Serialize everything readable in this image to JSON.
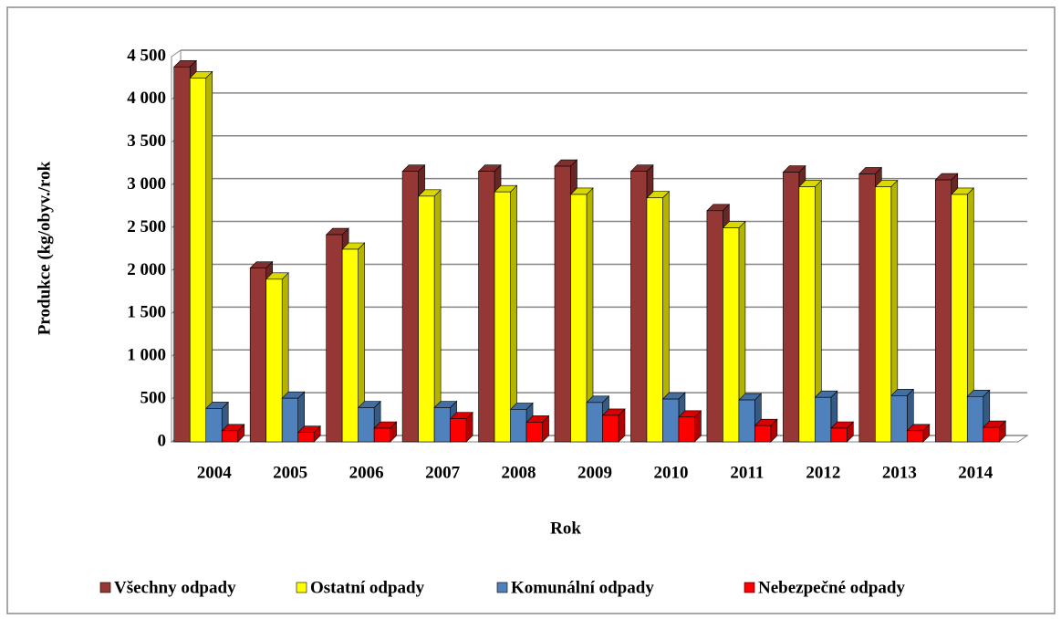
{
  "chart_data": {
    "type": "bar3d",
    "x_label": "Rok",
    "y_label": "Produkce (kg/obyv./rok",
    "categories": [
      "2004",
      "2005",
      "2006",
      "2007",
      "2008",
      "2009",
      "2010",
      "2011",
      "2012",
      "2013",
      "2014"
    ],
    "series": [
      {
        "name": "Všechny odpady",
        "color": "#953735",
        "values": [
          4380,
          2030,
          2420,
          3160,
          3160,
          3220,
          3160,
          2700,
          3150,
          3130,
          3060
        ]
      },
      {
        "name": "Ostatní odpady",
        "color": "#ffff00",
        "values": [
          4250,
          1900,
          2250,
          2870,
          2920,
          2890,
          2850,
          2500,
          2980,
          2980,
          2890
        ]
      },
      {
        "name": "Komunální odpady",
        "color": "#4f81bd",
        "values": [
          390,
          510,
          400,
          400,
          380,
          460,
          500,
          490,
          520,
          540,
          530
        ]
      },
      {
        "name": "Nebezpečné odpady",
        "color": "#ff0000",
        "values": [
          130,
          110,
          160,
          270,
          230,
          310,
          290,
          190,
          160,
          130,
          170
        ]
      }
    ],
    "ylim": [
      0,
      4500
    ],
    "yticks": [
      0,
      500,
      {
        "value": 1000,
        "label": "1 000"
      },
      {
        "value": 1500,
        "label": "1 500"
      },
      {
        "value": 2000,
        "label": "2 000"
      },
      {
        "value": 2500,
        "label": "2 500"
      },
      {
        "value": 3000,
        "label": "3 000"
      },
      {
        "value": 3500,
        "label": "3 500"
      },
      {
        "value": 4000,
        "label": "4 000"
      },
      {
        "value": 4500,
        "label": "4 500"
      }
    ],
    "grid": true,
    "legend": "bottom"
  }
}
